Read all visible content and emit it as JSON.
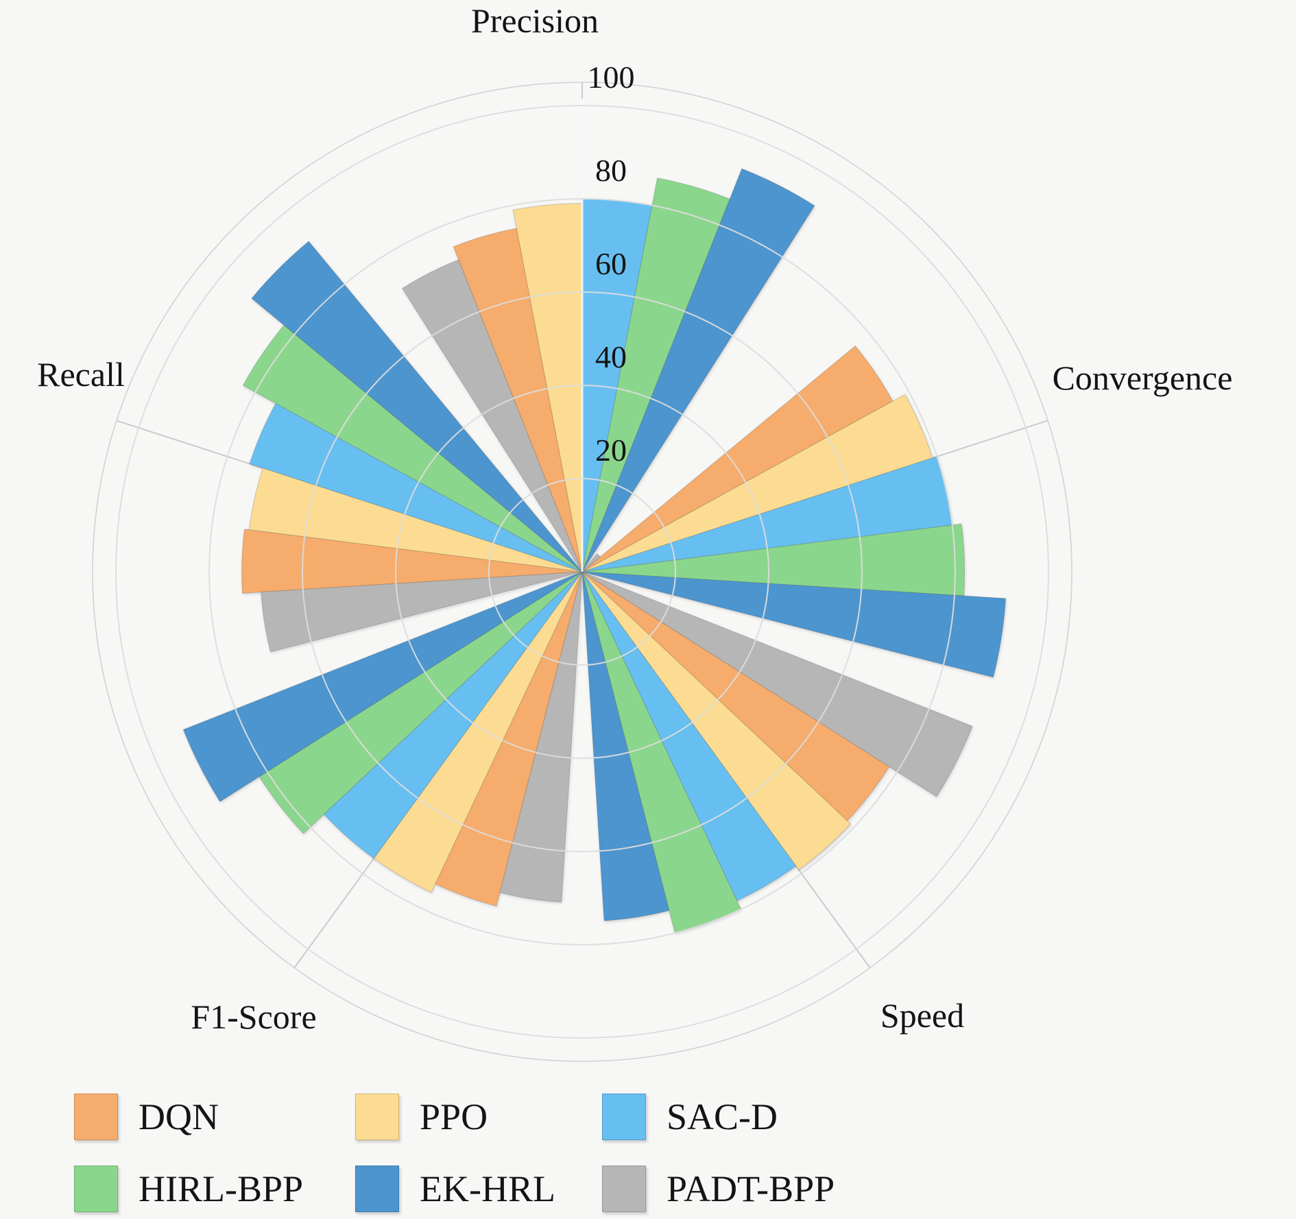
{
  "chart_data": {
    "type": "polar_bar",
    "title": "",
    "categories": [
      "Precision",
      "Convergence",
      "Speed",
      "F1-Score",
      "Recall"
    ],
    "category_angles_deg": [
      90,
      18,
      -54,
      -126,
      -198
    ],
    "radial_ticks": [
      20,
      40,
      60,
      80,
      100
    ],
    "rlim": [
      0,
      100
    ],
    "bar_width_deg": 10.8,
    "grid": "on",
    "legend_position": "bottom",
    "series": [
      {
        "name": "DQN",
        "color": "#f6ac6c",
        "offset_deg": 16.2,
        "values": [
          75,
          76,
          78,
          74,
          73
        ]
      },
      {
        "name": "PPO",
        "color": "#fbdc92",
        "offset_deg": 5.4,
        "values": [
          79,
          79,
          79,
          76,
          72
        ]
      },
      {
        "name": "SAC-D",
        "color": "#67bff1",
        "offset_deg": -5.4,
        "values": [
          80,
          80,
          78,
          76,
          75
        ]
      },
      {
        "name": "HIRL-BPP",
        "color": "#8bd68d",
        "offset_deg": -16.2,
        "values": [
          86,
          82,
          80,
          82,
          83
        ]
      },
      {
        "name": "EK-HRL",
        "color": "#4c95cf",
        "offset_deg": -27.0,
        "values": [
          93,
          91,
          75,
          92,
          92
        ]
      },
      {
        "name": "PADT-BPP",
        "color": "#b6b6b6",
        "offset_deg": 27.0,
        "values": [
          72,
          5,
          90,
          71,
          69
        ]
      }
    ],
    "legend_rows": [
      [
        "DQN",
        "PPO",
        "SAC-D"
      ],
      [
        "HIRL-BPP",
        "EK-HRL",
        "PADT-BPP"
      ]
    ],
    "colors": {
      "background": "#f7f7f6",
      "grid_line": "#dcdcdc",
      "outer_ring": "#d2d2d2",
      "spoke": "#cbcbcb",
      "radial_axis_line": "#ffffff",
      "text": "#141414"
    }
  }
}
